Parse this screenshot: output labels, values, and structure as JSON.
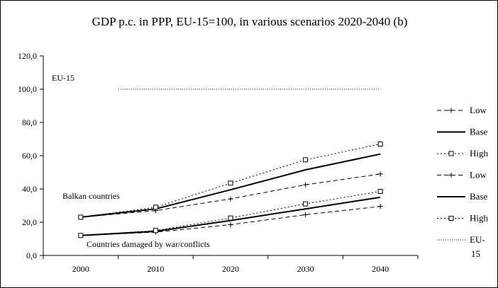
{
  "chart_data": {
    "type": "line",
    "title": "GDP p.c. in PPP, EU-15=100, in various scenarios 2020-2040 (b)",
    "categories": [
      "2000",
      "2010",
      "2020",
      "2030",
      "2040"
    ],
    "ylim": [
      0,
      120
    ],
    "yticks": [
      "0,0",
      "20,0",
      "40,0",
      "60,0",
      "80,0",
      "100,0",
      "120,0"
    ],
    "grid": false,
    "legend_position": "right",
    "series": [
      {
        "name": "Low",
        "group": "Balkan countries",
        "style": "dash-plus",
        "values": [
          23,
          27,
          34,
          42.5,
          49
        ]
      },
      {
        "name": "Base",
        "group": "Balkan countries",
        "style": "solid",
        "values": [
          23,
          28,
          39.5,
          51.5,
          61
        ]
      },
      {
        "name": "High",
        "group": "Balkan countries",
        "style": "dotted-square",
        "values": [
          23,
          29,
          43.5,
          57.5,
          67
        ]
      },
      {
        "name": "Low",
        "group": "Countries damaged by war/conflicts",
        "style": "dash-plus",
        "values": [
          12,
          14,
          18.5,
          24.5,
          29.5
        ]
      },
      {
        "name": "Base",
        "group": "Countries damaged by war/conflicts",
        "style": "solid",
        "values": [
          12,
          14.5,
          21,
          28,
          35
        ]
      },
      {
        "name": "High",
        "group": "Countries damaged by war/conflicts",
        "style": "dotted-square",
        "values": [
          12,
          15,
          22.5,
          31,
          38.5
        ]
      },
      {
        "name": "EU-15",
        "group": "EU-15",
        "style": "fine-dotted",
        "values": [
          null,
          100,
          100,
          100,
          100
        ]
      }
    ],
    "annotations": [
      "EU-15",
      "Balkan countries",
      "Countries damaged by war/conflicts"
    ]
  }
}
